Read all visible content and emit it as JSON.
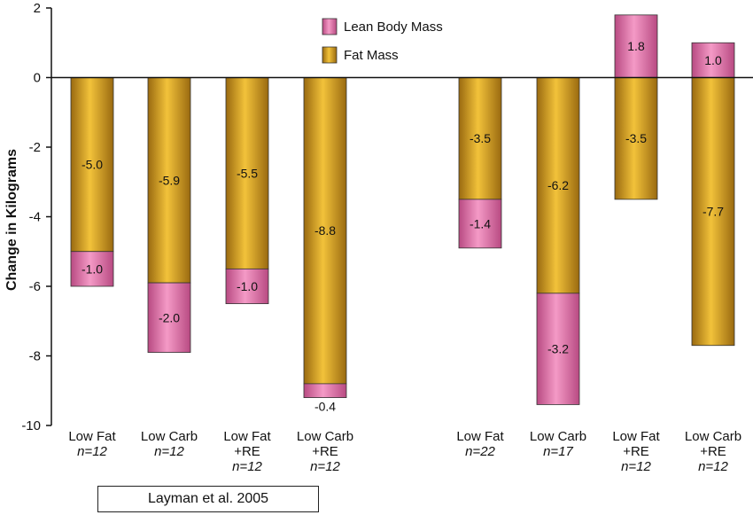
{
  "chart_data": {
    "type": "bar",
    "stacked": true,
    "ylabel": "Change in Kilograms",
    "ylim": [
      -10,
      2
    ],
    "yticks": [
      2,
      0,
      -2,
      -4,
      -6,
      -8,
      -10
    ],
    "grid": false,
    "legend_position": "top",
    "categories": [
      {
        "line1": "Low Fat",
        "line2": "",
        "n": "n=12"
      },
      {
        "line1": "Low Carb",
        "line2": "",
        "n": "n=12"
      },
      {
        "line1": "Low Fat",
        "line2": "+RE",
        "n": "n=12"
      },
      {
        "line1": "Low Carb",
        "line2": "+RE",
        "n": "n=12"
      },
      {
        "line1": "Low Fat",
        "line2": "",
        "n": "n=22"
      },
      {
        "line1": "Low Carb",
        "line2": "",
        "n": "n=17"
      },
      {
        "line1": "Low Fat",
        "line2": "+RE",
        "n": "n=12"
      },
      {
        "line1": "Low Carb",
        "line2": "+RE",
        "n": "n=12"
      }
    ],
    "series": [
      {
        "name": "Lean Body Mass",
        "color": "#d9669f",
        "values": [
          -1.0,
          -2.0,
          -1.0,
          -0.4,
          -1.4,
          -3.2,
          1.8,
          1.0
        ],
        "labels": [
          "-1.0",
          "-2.0",
          "-1.0",
          "-0.4",
          "-1.4",
          "-3.2",
          "1.8",
          "1.0"
        ]
      },
      {
        "name": "Fat Mass",
        "color": "#d4a020",
        "values": [
          -5.0,
          -5.9,
          -5.5,
          -8.8,
          -3.5,
          -6.2,
          -3.5,
          -7.7
        ],
        "labels": [
          "-5.0",
          "-5.9",
          "-5.5",
          "-8.8",
          "-3.5",
          "-6.2",
          "-3.5",
          "-7.7"
        ]
      }
    ],
    "citation": "Layman et al. 2005"
  }
}
